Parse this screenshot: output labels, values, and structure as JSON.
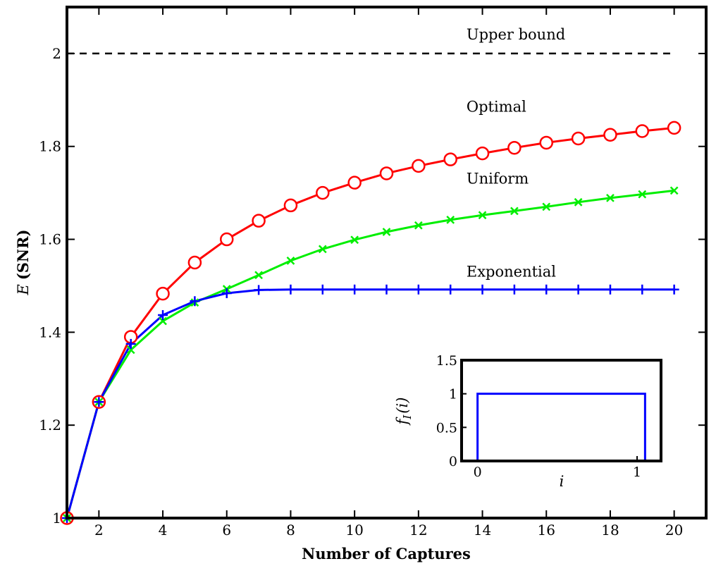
{
  "chart_data": [
    {
      "type": "line",
      "title": "",
      "xlabel": "Number of Captures",
      "ylabel_main": "E",
      "ylabel_paren": "(SNR)",
      "xlim": [
        1,
        21
      ],
      "ylim": [
        1,
        2.1
      ],
      "xticks": [
        2,
        4,
        6,
        8,
        10,
        12,
        14,
        16,
        18,
        20
      ],
      "yticks": [
        1,
        1.2,
        1.4,
        1.6,
        1.8,
        2
      ],
      "ytick_labels": [
        "1",
        "1.2",
        "1.4",
        "1.6",
        "1.8",
        "2"
      ],
      "grid": false,
      "legend": "none (series labelled inline)",
      "x": [
        1,
        2,
        3,
        4,
        5,
        6,
        7,
        8,
        9,
        10,
        11,
        12,
        13,
        14,
        15,
        16,
        17,
        18,
        19,
        20
      ],
      "series": [
        {
          "name": "Upper bound",
          "style": "dashed",
          "color": "#000000",
          "marker": "none",
          "label_at": [
            13.5,
            2.03
          ],
          "x": [
            1,
            20
          ],
          "values": [
            2,
            2
          ]
        },
        {
          "name": "Optimal",
          "style": "solid",
          "color": "#ff0000",
          "marker": "circle",
          "label_at": [
            13.5,
            1.875
          ],
          "values": [
            1.0,
            1.25,
            1.39,
            1.483,
            1.55,
            1.6,
            1.64,
            1.673,
            1.7,
            1.722,
            1.742,
            1.758,
            1.772,
            1.785,
            1.797,
            1.808,
            1.817,
            1.825,
            1.833,
            1.84
          ]
        },
        {
          "name": "Uniform",
          "style": "solid",
          "color": "#00ee00",
          "marker": "x",
          "label_at": [
            13.5,
            1.72
          ],
          "values": [
            1.0,
            1.25,
            1.362,
            1.424,
            1.464,
            1.493,
            1.523,
            1.554,
            1.579,
            1.599,
            1.616,
            1.63,
            1.642,
            1.652,
            1.661,
            1.67,
            1.68,
            1.689,
            1.697,
            1.705
          ]
        },
        {
          "name": "Exponential",
          "style": "solid",
          "color": "#0000ff",
          "marker": "plus",
          "label_at": [
            13.5,
            1.52
          ],
          "values": [
            1.0,
            1.25,
            1.375,
            1.437,
            1.467,
            1.484,
            1.491,
            1.492,
            1.492,
            1.492,
            1.492,
            1.492,
            1.492,
            1.492,
            1.492,
            1.492,
            1.492,
            1.492,
            1.492,
            1.492
          ]
        }
      ]
    },
    {
      "type": "line",
      "title": "",
      "xlabel": "i",
      "ylabel_main": "f",
      "ylabel_sub": "I",
      "ylabel_paren": "(i)",
      "xlim": [
        -0.1,
        1.15
      ],
      "ylim": [
        0,
        1.5
      ],
      "xticks": [
        0,
        1
      ],
      "xtick_labels": [
        "0",
        "1"
      ],
      "yticks": [
        0,
        0.5,
        1,
        1.5
      ],
      "ytick_labels": [
        "0",
        "0.5",
        "1",
        "1.5"
      ],
      "grid": false,
      "series": [
        {
          "color": "#0000ff",
          "style": "solid",
          "x": [
            -0.1,
            0,
            0,
            1.05,
            1.05,
            1.15
          ],
          "values": [
            0,
            0,
            1,
            1,
            0,
            0
          ]
        }
      ]
    }
  ]
}
